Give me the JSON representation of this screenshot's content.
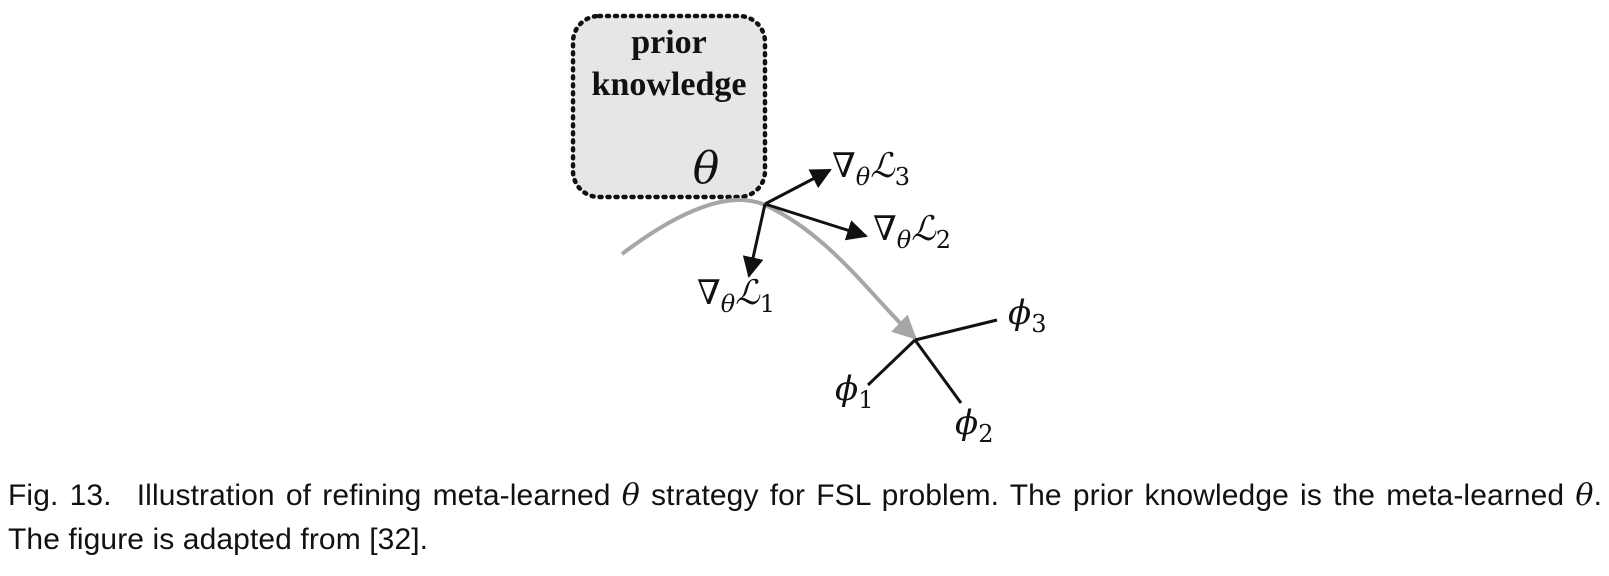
{
  "figure": {
    "box": {
      "title_line1": "prior",
      "title_line2": "knowledge",
      "theta": "θ"
    },
    "gradients": [
      {
        "nabla": "∇",
        "param": "θ",
        "loss": "ℒ",
        "index": "3"
      },
      {
        "nabla": "∇",
        "param": "θ",
        "loss": "ℒ",
        "index": "2"
      },
      {
        "nabla": "∇",
        "param": "θ",
        "loss": "ℒ",
        "index": "1"
      }
    ],
    "adapted": [
      {
        "symbol": "ϕ",
        "index": "3"
      },
      {
        "symbol": "ϕ",
        "index": "1"
      },
      {
        "symbol": "ϕ",
        "index": "2"
      }
    ],
    "colors": {
      "box_fill": "#e6e6e6",
      "box_border": "#111111",
      "path": "#a6a6a6",
      "arrow": "#111111"
    }
  },
  "caption": {
    "label": "Fig. 13.",
    "part1": "Illustration of refining meta-learned ",
    "theta1": "θ",
    "part2": " strategy for FSL problem. The prior knowledge is the meta-learned ",
    "theta2": "θ",
    "part3": ". The figure is adapted from [32]."
  }
}
